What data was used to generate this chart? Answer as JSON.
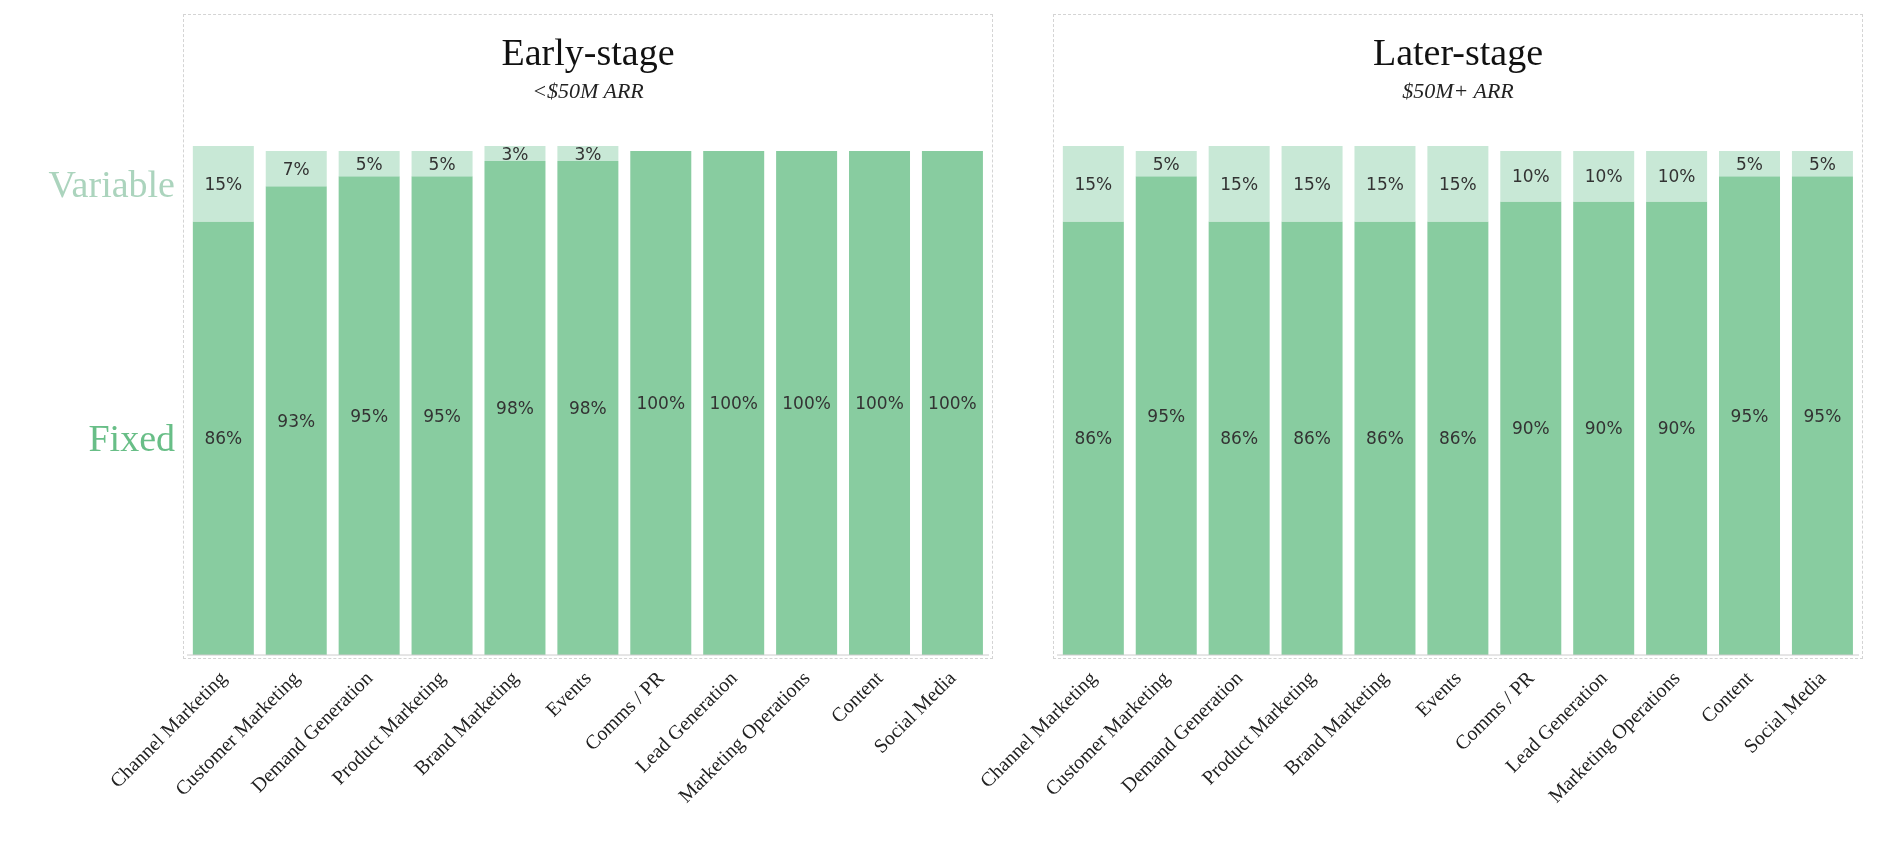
{
  "chart_data": [
    {
      "type": "bar",
      "title": "Early-stage",
      "subtitle": "<$50M ARR",
      "stacked": true,
      "legend": "left",
      "categories": [
        "Channel Marketing",
        "Customer Marketing",
        "Demand Generation",
        "Product Marketing",
        "Brand Marketing",
        "Events",
        "Comms / PR",
        "Lead Generation",
        "Marketing Operations",
        "Content",
        "Social Media"
      ],
      "series": [
        {
          "name": "Fixed",
          "color": "#88cca0",
          "values": [
            86,
            93,
            95,
            95,
            98,
            98,
            100,
            100,
            100,
            100,
            100
          ],
          "value_labels": [
            "86%",
            "93%",
            "95%",
            "95%",
            "98%",
            "98%",
            "100%",
            "100%",
            "100%",
            "100%",
            "100%"
          ]
        },
        {
          "name": "Variable",
          "color": "#c8e8d6",
          "values": [
            15,
            7,
            5,
            5,
            3,
            3,
            null,
            null,
            null,
            null,
            null
          ],
          "value_labels": [
            "15%",
            "7%",
            "5%",
            "5%",
            "3%",
            "3%",
            null,
            null,
            null,
            null,
            null
          ]
        }
      ]
    },
    {
      "type": "bar",
      "title": "Later-stage",
      "subtitle": "$50M+ ARR",
      "stacked": true,
      "categories": [
        "Channel Marketing",
        "Customer Marketing",
        "Demand Generation",
        "Product Marketing",
        "Brand Marketing",
        "Events",
        "Comms / PR",
        "Lead Generation",
        "Marketing Operations",
        "Content",
        "Social Media"
      ],
      "series": [
        {
          "color": "#88cca0",
          "values": [
            86,
            95,
            86,
            86,
            86,
            86,
            90,
            90,
            90,
            95,
            95
          ],
          "value_labels": [
            "86%",
            "95%",
            "86%",
            "86%",
            "86%",
            "86%",
            "90%",
            "90%",
            "90%",
            "95%",
            "95%"
          ]
        },
        {
          "color": "#c8e8d6",
          "values": [
            15,
            5,
            15,
            15,
            15,
            15,
            10,
            10,
            10,
            5,
            5
          ],
          "value_labels": [
            "15%",
            "5%",
            "15%",
            "15%",
            "15%",
            "15%",
            "10%",
            "10%",
            "10%",
            "5%",
            "5%"
          ]
        }
      ]
    }
  ]
}
